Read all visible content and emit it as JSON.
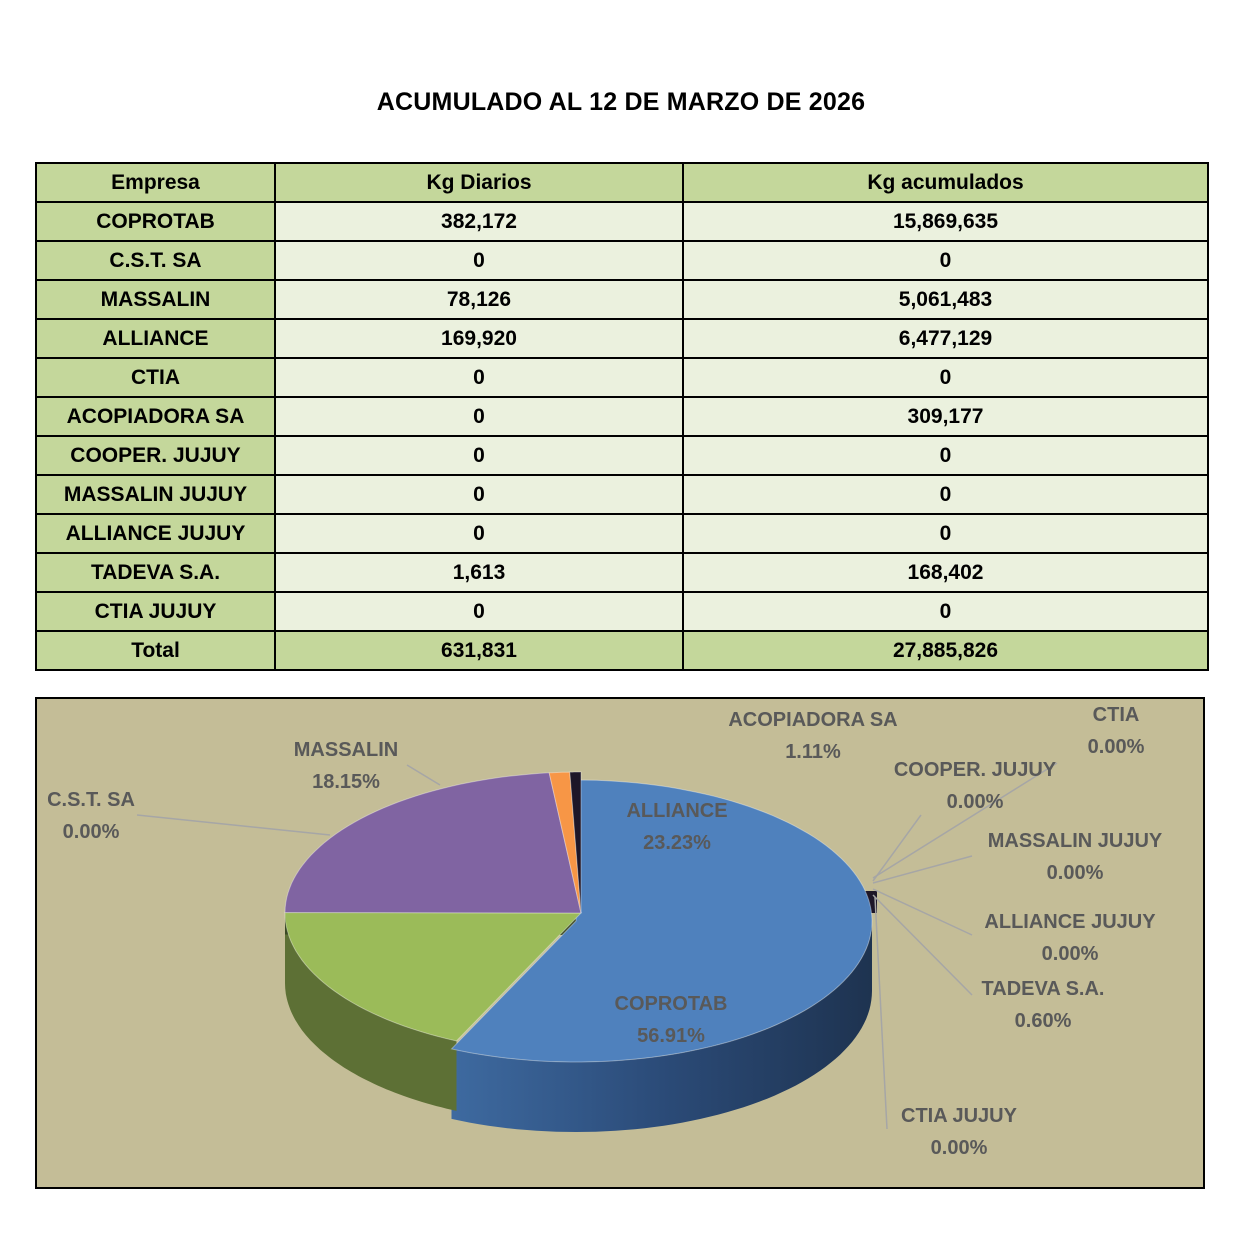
{
  "title": "ACUMULADO AL 12 DE MARZO DE 2026",
  "table": {
    "headers": [
      "Empresa",
      "Kg Diarios",
      "Kg acumulados"
    ],
    "rows": [
      [
        "COPROTAB",
        "382,172",
        "15,869,635"
      ],
      [
        "C.S.T. SA",
        "0",
        "0"
      ],
      [
        "MASSALIN",
        "78,126",
        "5,061,483"
      ],
      [
        "ALLIANCE",
        "169,920",
        "6,477,129"
      ],
      [
        "CTIA",
        "0",
        "0"
      ],
      [
        "ACOPIADORA SA",
        "0",
        "309,177"
      ],
      [
        "COOPER. JUJUY",
        "0",
        "0"
      ],
      [
        "MASSALIN JUJUY",
        "0",
        "0"
      ],
      [
        "ALLIANCE JUJUY",
        "0",
        "0"
      ],
      [
        "TADEVA S.A.",
        "1,613",
        "168,402"
      ],
      [
        "CTIA JUJUY",
        "0",
        "0"
      ]
    ],
    "total": [
      "Total",
      "631,831",
      "27,885,826"
    ]
  },
  "chart_data": {
    "type": "pie",
    "variant": "3d",
    "background": "#c4bd97",
    "start_angle_deg": 90,
    "labels_show": "category and percentage",
    "slices": [
      {
        "label": "COPROTAB",
        "pct": "56.91%",
        "value": 15869635,
        "color": "#4f81bd"
      },
      {
        "label": "C.S.T. SA",
        "pct": "0.00%",
        "value": 0,
        "color": "#c0504d"
      },
      {
        "label": "MASSALIN",
        "pct": "18.15%",
        "value": 5061483,
        "color": "#9bbb59"
      },
      {
        "label": "ALLIANCE",
        "pct": "23.23%",
        "value": 6477129,
        "color": "#8064a2"
      },
      {
        "label": "CTIA",
        "pct": "0.00%",
        "value": 0,
        "color": "#4bacc6"
      },
      {
        "label": "ACOPIADORA SA",
        "pct": "1.11%",
        "value": 309177,
        "color": "#f79646"
      },
      {
        "label": "COOPER. JUJUY",
        "pct": "0.00%",
        "value": 0,
        "color": "#2c4d75"
      },
      {
        "label": "MASSALIN JUJUY",
        "pct": "0.00%",
        "value": 0,
        "color": "#772c2a"
      },
      {
        "label": "ALLIANCE JUJUY",
        "pct": "0.00%",
        "value": 0,
        "color": "#5f7530"
      },
      {
        "label": "TADEVA S.A.",
        "pct": "0.60%",
        "value": 168402,
        "color": "#1d1628"
      },
      {
        "label": "CTIA JUJUY",
        "pct": "0.00%",
        "value": 0,
        "color": "#276a7c"
      }
    ]
  }
}
